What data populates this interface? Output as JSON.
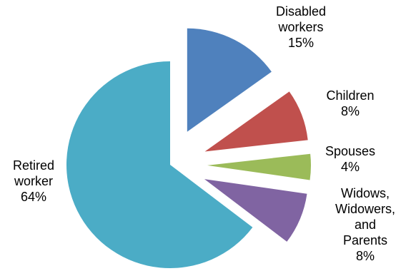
{
  "chart_data": {
    "type": "pie",
    "title": "",
    "legend": "none",
    "slices": [
      {
        "name": "Disabled workers",
        "label_lines": [
          "Disabled",
          "workers",
          "15%"
        ],
        "value": 15,
        "color": "#4F81BD"
      },
      {
        "name": "Children",
        "label_lines": [
          "Children",
          "8%"
        ],
        "value": 8,
        "color": "#C0504D"
      },
      {
        "name": "Spouses",
        "label_lines": [
          "Spouses",
          "4%"
        ],
        "value": 4,
        "color": "#9BBB59"
      },
      {
        "name": "Widows, Widowers, and Parents",
        "label_lines": [
          "Widows,",
          "Widowers,",
          "and",
          "Parents",
          "8%"
        ],
        "value": 8,
        "color": "#8064A2"
      },
      {
        "name": "Retired worker",
        "label_lines": [
          "Retired",
          "worker",
          "64%"
        ],
        "value": 64,
        "color": "#4BACC6"
      }
    ]
  }
}
